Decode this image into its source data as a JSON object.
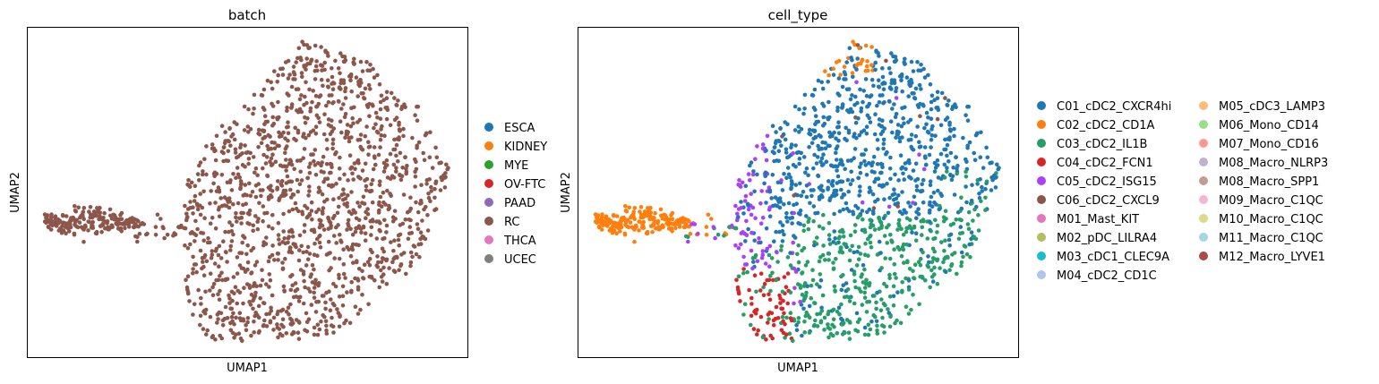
{
  "chart_data": [
    {
      "type": "scatter",
      "title": "batch",
      "xlabel": "UMAP1",
      "ylabel": "UMAP2",
      "grid": false,
      "ticks": false,
      "legend_position": "right",
      "legend": [
        {
          "label": "ESCA",
          "color": "#1f77b4"
        },
        {
          "label": "KIDNEY",
          "color": "#ff7f0e"
        },
        {
          "label": "MYE",
          "color": "#2ca02c"
        },
        {
          "label": "OV-FTC",
          "color": "#d62728"
        },
        {
          "label": "PAAD",
          "color": "#9467bd"
        },
        {
          "label": "RC",
          "color": "#8c564b"
        },
        {
          "label": "THCA",
          "color": "#e377c2"
        },
        {
          "label": "UCEC",
          "color": "#7f7f7f"
        }
      ],
      "point_color_all": "#8c564b"
    },
    {
      "type": "scatter",
      "title": "cell_type",
      "xlabel": "UMAP1",
      "ylabel": "UMAP2",
      "grid": false,
      "ticks": false,
      "legend_position": "right",
      "legend": [
        {
          "label": "C01_cDC2_CXCR4hi",
          "color": "#1f77b4"
        },
        {
          "label": "C02_cDC2_CD1A",
          "color": "#ff7f0e"
        },
        {
          "label": "C03_cDC2_IL1B",
          "color": "#279e68"
        },
        {
          "label": "C04_cDC2_FCN1",
          "color": "#d62728"
        },
        {
          "label": "C05_cDC2_ISG15",
          "color": "#aa40fc"
        },
        {
          "label": "C06_cDC2_CXCL9",
          "color": "#8c564b"
        },
        {
          "label": "M01_Mast_KIT",
          "color": "#e377c2"
        },
        {
          "label": "M02_pDC_LILRA4",
          "color": "#b5bd61"
        },
        {
          "label": "M03_cDC1_CLEC9A",
          "color": "#17becf"
        },
        {
          "label": "M04_cDC2_CD1C",
          "color": "#aec7e8"
        },
        {
          "label": "M05_cDC3_LAMP3",
          "color": "#ffbb78"
        },
        {
          "label": "M06_Mono_CD14",
          "color": "#98df8a"
        },
        {
          "label": "M07_Mono_CD16",
          "color": "#ff9896"
        },
        {
          "label": "M08_Macro_NLRP3",
          "color": "#c5b0d5"
        },
        {
          "label": "M08_Macro_SPP1",
          "color": "#c49c94"
        },
        {
          "label": "M09_Macro_C1QC",
          "color": "#f7b6d2"
        },
        {
          "label": "M10_Macro_C1QC",
          "color": "#dbdb8d"
        },
        {
          "label": "M11_Macro_C1QC",
          "color": "#9edae5"
        },
        {
          "label": "M12_Macro_LYVE1",
          "color": "#ad494a"
        }
      ]
    }
  ]
}
